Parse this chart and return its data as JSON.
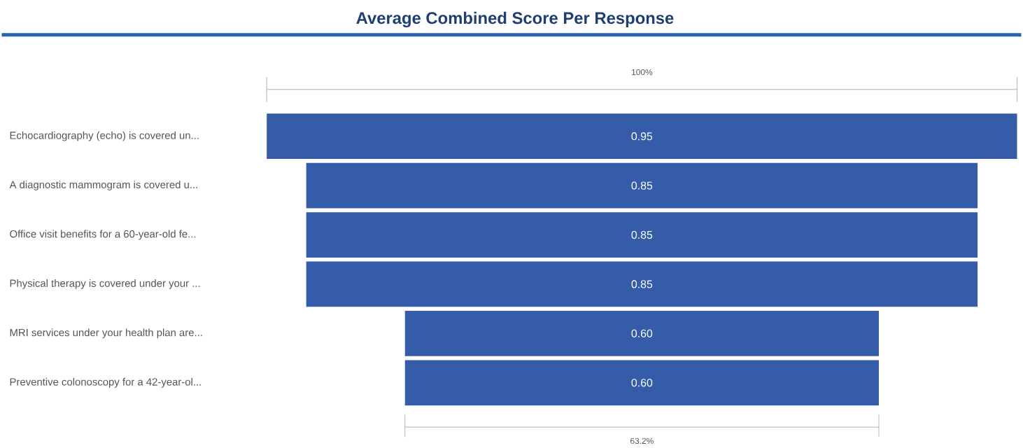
{
  "chart_data": {
    "type": "other",
    "title": "Average Combined Score Per Response",
    "categories": [
      "Echocardiography (echo) is covered un...",
      "A diagnostic mammogram is covered u...",
      "Office visit benefits for a 60-year-old fe...",
      "Physical therapy is covered under your ...",
      "MRI services under your health plan are...",
      "Preventive colonoscopy for a 42-year-ol..."
    ],
    "values": [
      0.95,
      0.85,
      0.85,
      0.85,
      0.6,
      0.6
    ],
    "value_labels": [
      "0.95",
      "0.85",
      "0.85",
      "0.85",
      "0.60",
      "0.60"
    ],
    "color": "#355ca9",
    "annotations": [
      "100%",
      "63.2%"
    ]
  }
}
